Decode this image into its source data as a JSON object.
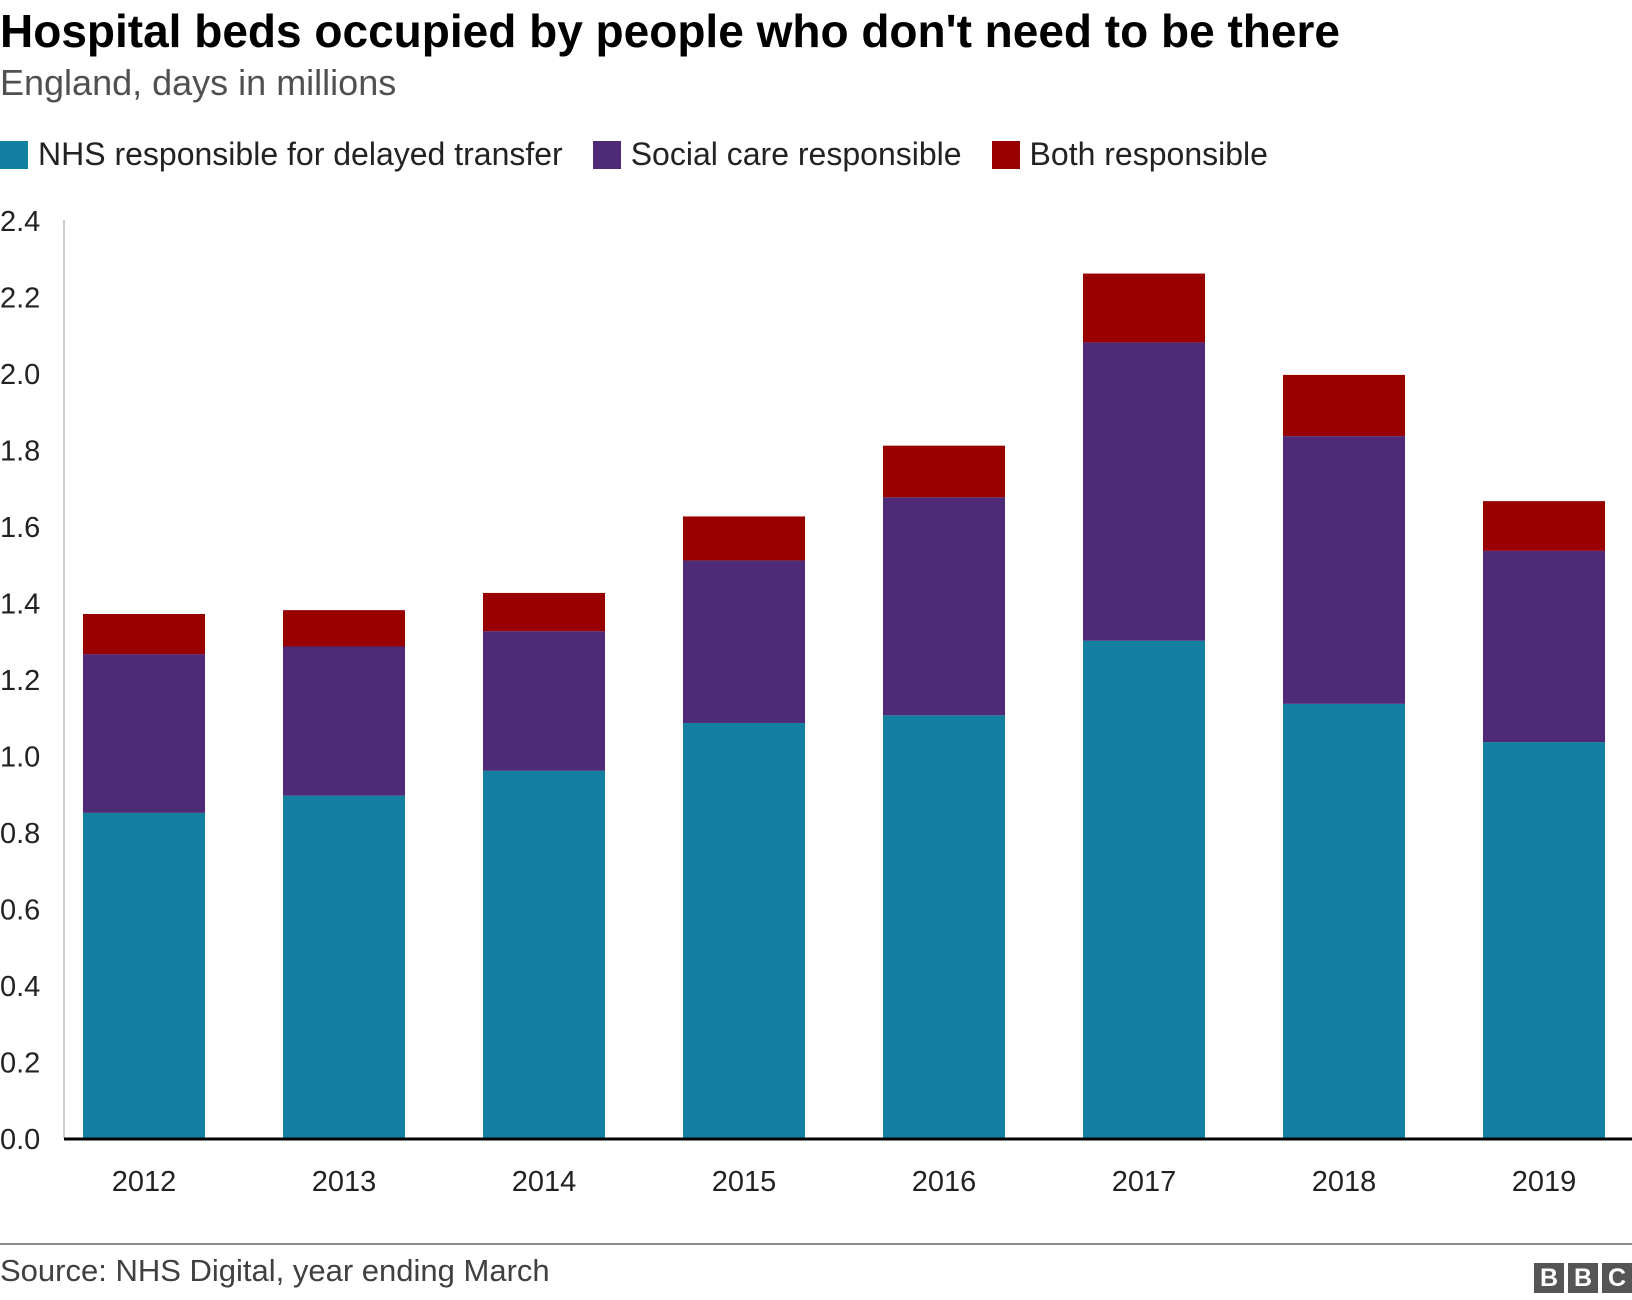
{
  "chart_data": {
    "type": "bar",
    "stacked": true,
    "title": "Hospital beds occupied by people who don't need to be there",
    "subtitle": "England, days in millions",
    "categories": [
      "2012",
      "2013",
      "2014",
      "2015",
      "2016",
      "2017",
      "2018",
      "2019"
    ],
    "series": [
      {
        "name": "NHS responsible for delayed transfer",
        "color": "#1380a1",
        "values": [
          0.85,
          0.895,
          0.96,
          1.085,
          1.105,
          1.3,
          1.135,
          1.035
        ]
      },
      {
        "name": "Social care responsible",
        "color": "#4e2a77",
        "values": [
          0.415,
          0.39,
          0.365,
          0.425,
          0.57,
          0.78,
          0.7,
          0.5
        ]
      },
      {
        "name": "Both responsible",
        "color": "#990000",
        "values": [
          0.105,
          0.095,
          0.1,
          0.115,
          0.135,
          0.18,
          0.16,
          0.13
        ]
      }
    ],
    "ylim": [
      0,
      2.4
    ],
    "yticks": [
      "0.0",
      "0.2",
      "0.4",
      "0.6",
      "0.8",
      "1.0",
      "1.2",
      "1.4",
      "1.6",
      "1.8",
      "2.0",
      "2.2",
      "2.4"
    ],
    "xlabel": "",
    "ylabel": "",
    "grid": false,
    "legend_position": "top-left"
  },
  "footer": {
    "source": "Source: NHS Digital, year ending March",
    "logo_letters": [
      "B",
      "B",
      "C"
    ]
  }
}
